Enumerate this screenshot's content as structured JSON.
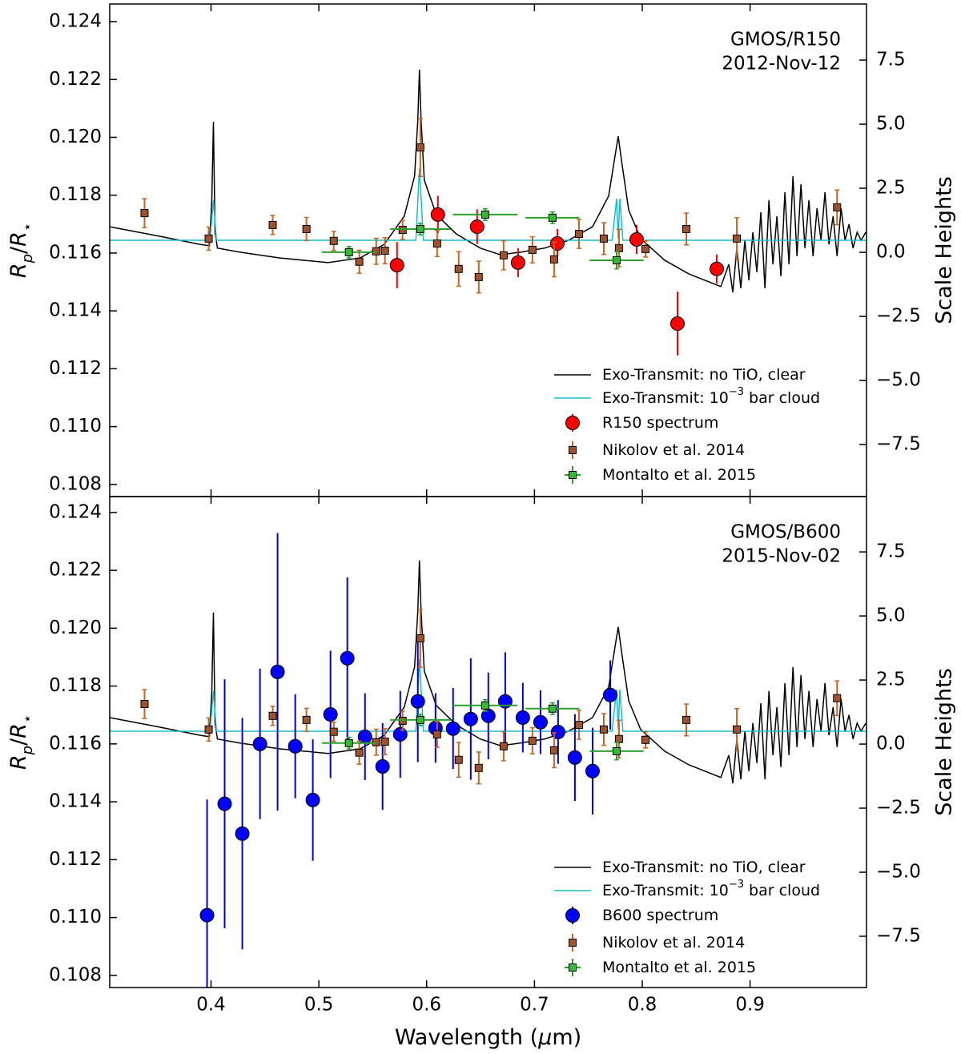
{
  "chart_data": [
    {
      "type": "errorbar",
      "annotation": [
        "GMOS/R150",
        "2012-Nov-12"
      ],
      "ylabel": {
        "main1": "R",
        "sub1": "p",
        "sep": "/",
        "main2": "R",
        "sub2": "⋆"
      },
      "y2label": "Scale Heights",
      "xticklabels": false,
      "legend": "lower right",
      "xlim": [
        0.306,
        1.008
      ],
      "ylim": [
        0.10758,
        0.12461
      ],
      "y2lim": [
        -9.53,
        9.69
      ],
      "xticks": [
        0.4,
        0.5,
        0.6,
        0.7,
        0.8,
        0.9
      ],
      "yticks": [
        0.108,
        {
          "value": 0.11,
          "label": "0.110"
        },
        0.112,
        0.114,
        0.116,
        0.118,
        {
          "value": 0.12,
          "label": "0.120"
        },
        0.122,
        0.124
      ],
      "y2ticks": [
        {
          "value": -7.5,
          "label": "−7.5"
        },
        {
          "value": -5,
          "label": "−5.0"
        },
        {
          "value": -2.5,
          "label": "−2.5"
        },
        {
          "value": 0,
          "label": "0.0"
        },
        2.5,
        {
          "value": 5,
          "label": "5.0"
        },
        7.5
      ],
      "series": [
        {
          "type": "line",
          "name": "Exo-Transmit: no TiO, clear",
          "color": "#000000",
          "x": [
            0.306,
            0.3524,
            0.3896,
            0.3985,
            0.4007,
            0.4022,
            0.4037,
            0.4059,
            0.4268,
            0.4639,
            0.5086,
            0.5383,
            0.5606,
            0.5792,
            0.5888,
            0.5918,
            0.5933,
            0.5948,
            0.5978,
            0.6089,
            0.6275,
            0.6498,
            0.6684,
            0.687,
            0.7093,
            0.7316,
            0.7539,
            0.7688,
            0.7747,
            0.7777,
            0.7807,
            0.7874,
            0.7985,
            0.8208,
            0.8431,
            0.8729,
            0.8803,
            0.884,
            0.8877,
            0.8914,
            0.8952,
            0.8989,
            0.9026,
            0.9063,
            0.91,
            0.9138,
            0.9175,
            0.9212,
            0.9249,
            0.9286,
            0.9323,
            0.9361,
            0.9398,
            0.9435,
            0.9472,
            0.9509,
            0.9546,
            0.9584,
            0.9621,
            0.9658,
            0.9695,
            0.9732,
            0.977,
            0.9807,
            0.9844,
            0.9881,
            0.9918,
            0.9955,
            0.9993,
            1.003,
            1.0074
          ],
          "values": [
            0.11691,
            0.11658,
            0.1163,
            0.11625,
            0.11783,
            0.12054,
            0.11672,
            0.11617,
            0.11603,
            0.11583,
            0.11567,
            0.11583,
            0.1163,
            0.11727,
            0.11866,
            0.1206,
            0.12234,
            0.1206,
            0.11852,
            0.11733,
            0.11666,
            0.11617,
            0.11594,
            0.11603,
            0.11617,
            0.11644,
            0.11691,
            0.11797,
            0.11935,
            0.12004,
            0.11921,
            0.11749,
            0.1165,
            0.11575,
            0.11528,
            0.11484,
            0.11561,
            0.11464,
            0.11617,
            0.11478,
            0.11644,
            0.11506,
            0.11672,
            0.11534,
            0.11741,
            0.11478,
            0.11783,
            0.11561,
            0.11727,
            0.1152,
            0.1181,
            0.11561,
            0.11866,
            0.11589,
            0.11838,
            0.11617,
            0.11783,
            0.11589,
            0.11755,
            0.11644,
            0.1181,
            0.1163,
            0.11727,
            0.11589,
            0.11755,
            0.11644,
            0.117,
            0.11617,
            0.11672,
            0.11644,
            0.11672
          ]
        },
        {
          "type": "line",
          "name": "Exo-Transmit: 10",
          "name_sup": "−3",
          "name_suffix": " bar cloud",
          "color": "#17becf",
          "x": [
            0.306,
            0.399,
            0.4022,
            0.405,
            0.59,
            0.5933,
            0.597,
            0.772,
            0.7762,
            0.7777,
            0.7792,
            0.782,
            1.008
          ],
          "values": [
            0.11644,
            0.11644,
            0.11783,
            0.11644,
            0.11644,
            0.11893,
            0.11644,
            0.11644,
            0.11788,
            0.1165,
            0.11788,
            0.11644,
            0.11644
          ]
        },
        {
          "type": "errorbar",
          "name": "R150 spectrum",
          "color": "#ff0000",
          "ecolor": "#ee0000",
          "marker": "circle",
          "x": [
            0.5725,
            0.6104,
            0.6468,
            0.6848,
            0.7212,
            0.7948,
            0.8327,
            0.8691
          ],
          "values": [
            0.11558,
            0.11733,
            0.11691,
            0.11567,
            0.11633,
            0.11647,
            0.11356,
            0.11545
          ],
          "yerr": [
            0.0008,
            0.00065,
            0.0006,
            0.0005,
            0.0005,
            0.0005,
            0.0011,
            0.0005
          ]
        },
        {
          "type": "errorbar",
          "name": "Nikolov et al. 2014",
          "color": "#a0522d",
          "ecolor": "#c8641e",
          "marker": "square",
          "x": [
            0.3383,
            0.3978,
            0.4572,
            0.4885,
            0.5138,
            0.5375,
            0.5532,
            0.5613,
            0.5777,
            0.5941,
            0.6097,
            0.6297,
            0.6483,
            0.6714,
            0.6981,
            0.7182,
            0.7413,
            0.7643,
            0.7784,
            0.803,
            0.8409,
            0.8877,
            0.9807
          ],
          "values": [
            0.11738,
            0.1165,
            0.11697,
            0.11683,
            0.11642,
            0.1157,
            0.11606,
            0.11608,
            0.1168,
            0.11965,
            0.11633,
            0.11545,
            0.11517,
            0.11592,
            0.11611,
            0.11578,
            0.11666,
            0.1165,
            0.11617,
            0.11614,
            0.11683,
            0.1165,
            0.11758
          ],
          "yerr": [
            0.0005,
            0.0004,
            0.00033,
            0.0004,
            0.00033,
            0.0004,
            0.00045,
            0.00045,
            0.00033,
            0.001,
            0.00045,
            0.0006,
            0.00055,
            0.0005,
            0.00045,
            0.0006,
            0.0005,
            0.00055,
            0.00065,
            0.00028,
            0.00055,
            0.00072,
            0.0006
          ]
        },
        {
          "type": "errorbar",
          "name": "Montalto et al. 2015",
          "color": "#33bb33",
          "ecolor": "#2ca02c",
          "marker": "square",
          "x": [
            0.5279,
            0.5941,
            0.6543,
            0.7167,
            0.7762
          ],
          "values": [
            0.11603,
            0.11683,
            0.11733,
            0.11722,
            0.11575
          ],
          "xerr": [
            0.025,
            0.028,
            0.03,
            0.025,
            0.025
          ],
          "yerr": [
            0.0002,
            0.0002,
            0.0002,
            0.0002,
            0.0003
          ]
        }
      ]
    },
    {
      "type": "errorbar",
      "annotation": [
        "GMOS/B600",
        "2015-Nov-02"
      ],
      "ylabel": {
        "main1": "R",
        "sub1": "p",
        "sep": "/",
        "main2": "R",
        "sub2": "⋆"
      },
      "y2label": "Scale Heights",
      "xlabel": {
        "pre": "Wavelength (",
        "it": "μ",
        "post": "m)"
      },
      "xticklabels": true,
      "legend": "lower right",
      "xlim": [
        0.306,
        1.008
      ],
      "ylim": [
        0.10758,
        0.12455
      ],
      "y2lim": [
        -9.5,
        9.66
      ],
      "xticks": [
        0.4,
        0.5,
        0.6,
        0.7,
        0.8,
        0.9
      ],
      "yticks": [
        0.108,
        {
          "value": 0.11,
          "label": "0.110"
        },
        0.112,
        0.114,
        0.116,
        0.118,
        {
          "value": 0.12,
          "label": "0.120"
        },
        0.122,
        0.124
      ],
      "y2ticks": [
        {
          "value": -7.5,
          "label": "−7.5"
        },
        {
          "value": -5,
          "label": "−5.0"
        },
        {
          "value": -2.5,
          "label": "−2.5"
        },
        {
          "value": 0,
          "label": "0.0"
        },
        2.5,
        {
          "value": 5,
          "label": "5.0"
        },
        7.5
      ],
      "series": [
        {
          "type": "line",
          "name": "Exo-Transmit: no TiO, clear",
          "color": "#000000",
          "x": [
            0.306,
            0.3524,
            0.3896,
            0.3985,
            0.4007,
            0.4022,
            0.4037,
            0.4059,
            0.4268,
            0.4639,
            0.5086,
            0.5383,
            0.5606,
            0.5792,
            0.5888,
            0.5918,
            0.5933,
            0.5948,
            0.5978,
            0.6089,
            0.6275,
            0.6498,
            0.6684,
            0.687,
            0.7093,
            0.7316,
            0.7539,
            0.7688,
            0.7747,
            0.7777,
            0.7807,
            0.7874,
            0.7985,
            0.8208,
            0.8431,
            0.8729,
            0.8803,
            0.884,
            0.8877,
            0.8914,
            0.8952,
            0.8989,
            0.9026,
            0.9063,
            0.91,
            0.9138,
            0.9175,
            0.9212,
            0.9249,
            0.9286,
            0.9323,
            0.9361,
            0.9398,
            0.9435,
            0.9472,
            0.9509,
            0.9546,
            0.9584,
            0.9621,
            0.9658,
            0.9695,
            0.9732,
            0.977,
            0.9807,
            0.9844,
            0.9881,
            0.9918,
            0.9955,
            0.9993,
            1.003,
            1.0074
          ],
          "values": [
            0.11691,
            0.11658,
            0.1163,
            0.11625,
            0.11783,
            0.12054,
            0.11672,
            0.11617,
            0.11603,
            0.11583,
            0.11567,
            0.11583,
            0.1163,
            0.11727,
            0.11866,
            0.1206,
            0.12234,
            0.1206,
            0.11852,
            0.11733,
            0.11666,
            0.11617,
            0.11594,
            0.11603,
            0.11617,
            0.11644,
            0.11691,
            0.11797,
            0.11935,
            0.12004,
            0.11921,
            0.11749,
            0.1165,
            0.11575,
            0.11528,
            0.11484,
            0.11561,
            0.11464,
            0.11617,
            0.11478,
            0.11644,
            0.11506,
            0.11672,
            0.11534,
            0.11741,
            0.11478,
            0.11783,
            0.11561,
            0.11727,
            0.1152,
            0.1181,
            0.11561,
            0.11866,
            0.11589,
            0.11838,
            0.11617,
            0.11783,
            0.11589,
            0.11755,
            0.11644,
            0.1181,
            0.1163,
            0.11727,
            0.11589,
            0.11755,
            0.11644,
            0.117,
            0.11617,
            0.11672,
            0.11644,
            0.11672
          ]
        },
        {
          "type": "line",
          "name": "Exo-Transmit: 10",
          "name_sup": "−3",
          "name_suffix": " bar cloud",
          "color": "#17becf",
          "x": [
            0.306,
            0.399,
            0.4022,
            0.405,
            0.59,
            0.5933,
            0.597,
            0.772,
            0.7762,
            0.7777,
            0.7792,
            0.782,
            1.008
          ],
          "values": [
            0.11644,
            0.11644,
            0.11783,
            0.11644,
            0.11644,
            0.11893,
            0.11644,
            0.11644,
            0.11788,
            0.1165,
            0.11788,
            0.11644,
            0.11644
          ]
        },
        {
          "type": "errorbar",
          "name": "B600 spectrum",
          "color": "#0000ff",
          "ecolor": "#0000dd",
          "marker": "circle",
          "x": [
            0.3963,
            0.4126,
            0.429,
            0.4454,
            0.4617,
            0.4781,
            0.4944,
            0.5108,
            0.5264,
            0.5428,
            0.5591,
            0.5755,
            0.5918,
            0.6082,
            0.6245,
            0.6409,
            0.6572,
            0.6729,
            0.6892,
            0.7056,
            0.7219,
            0.7375,
            0.7539,
            0.7703
          ],
          "values": [
            0.11008,
            0.11393,
            0.1129,
            0.116,
            0.11849,
            0.11592,
            0.11406,
            0.11702,
            0.11896,
            0.11625,
            0.11522,
            0.11633,
            0.11747,
            0.11655,
            0.11653,
            0.11686,
            0.11697,
            0.11747,
            0.11691,
            0.11675,
            0.11641,
            0.11553,
            0.11506,
            0.11769
          ],
          "yerr": [
            0.004,
            0.0043,
            0.004,
            0.0026,
            0.0048,
            0.0018,
            0.0021,
            0.0022,
            0.0028,
            0.0015,
            0.0015,
            0.0015,
            0.0021,
            0.0012,
            0.0014,
            0.0021,
            0.0015,
            0.0017,
            0.0012,
            0.0011,
            0.0011,
            0.0015,
            0.0015,
            0.0012
          ]
        },
        {
          "type": "errorbar",
          "name": "Nikolov et al. 2014",
          "color": "#a0522d",
          "ecolor": "#c8641e",
          "marker": "square",
          "x": [
            0.3383,
            0.3978,
            0.4572,
            0.4885,
            0.5138,
            0.5375,
            0.5532,
            0.5613,
            0.5777,
            0.5941,
            0.6097,
            0.6297,
            0.6483,
            0.6714,
            0.6981,
            0.7182,
            0.7413,
            0.7643,
            0.7784,
            0.803,
            0.8409,
            0.8877,
            0.9807
          ],
          "values": [
            0.11738,
            0.1165,
            0.11697,
            0.11683,
            0.11642,
            0.1157,
            0.11606,
            0.11608,
            0.1168,
            0.11965,
            0.11633,
            0.11545,
            0.11517,
            0.11592,
            0.11611,
            0.11578,
            0.11666,
            0.1165,
            0.11617,
            0.11614,
            0.11683,
            0.1165,
            0.11758
          ],
          "yerr": [
            0.0005,
            0.0004,
            0.00033,
            0.0004,
            0.00033,
            0.0004,
            0.00045,
            0.00045,
            0.00033,
            0.001,
            0.00045,
            0.0006,
            0.00055,
            0.0005,
            0.00045,
            0.0006,
            0.0005,
            0.00055,
            0.00065,
            0.00028,
            0.00055,
            0.00072,
            0.0006
          ]
        },
        {
          "type": "errorbar",
          "name": "Montalto et al. 2015",
          "color": "#33bb33",
          "ecolor": "#2ca02c",
          "marker": "square",
          "x": [
            0.5279,
            0.5941,
            0.6543,
            0.7167,
            0.7762
          ],
          "values": [
            0.11603,
            0.11683,
            0.11733,
            0.11722,
            0.11575
          ],
          "xerr": [
            0.025,
            0.028,
            0.03,
            0.025,
            0.025
          ],
          "yerr": [
            0.0002,
            0.0002,
            0.0002,
            0.0002,
            0.0003
          ]
        }
      ]
    }
  ]
}
